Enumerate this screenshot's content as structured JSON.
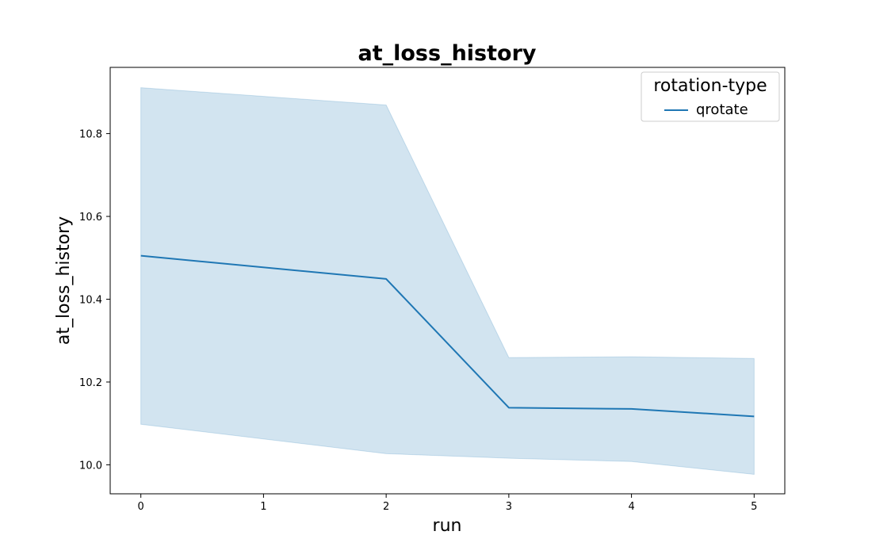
{
  "chart_data": {
    "type": "line",
    "title": "at_loss_history",
    "xlabel": "run",
    "ylabel": "at_loss_history",
    "xlim": [
      -0.25,
      5.25
    ],
    "ylim": [
      9.93,
      10.96
    ],
    "x_ticks": [
      0,
      1,
      2,
      3,
      4,
      5
    ],
    "y_ticks": [
      10.0,
      10.2,
      10.4,
      10.6,
      10.8
    ],
    "y_tick_labels": [
      "10.0",
      "10.2",
      "10.4",
      "10.6",
      "10.8"
    ],
    "grid": false,
    "legend": {
      "title": "rotation-type",
      "placement": "top-right"
    },
    "series": [
      {
        "name": "qrotate",
        "color": "#1f77b4",
        "band_color": "#1f77b4",
        "x": [
          0,
          2,
          3,
          4,
          5
        ],
        "y": [
          10.505,
          10.449,
          10.138,
          10.135,
          10.117
        ],
        "lower": [
          10.098,
          10.027,
          10.016,
          10.008,
          9.977
        ],
        "upper": [
          10.911,
          10.869,
          10.259,
          10.261,
          10.257
        ]
      }
    ]
  }
}
